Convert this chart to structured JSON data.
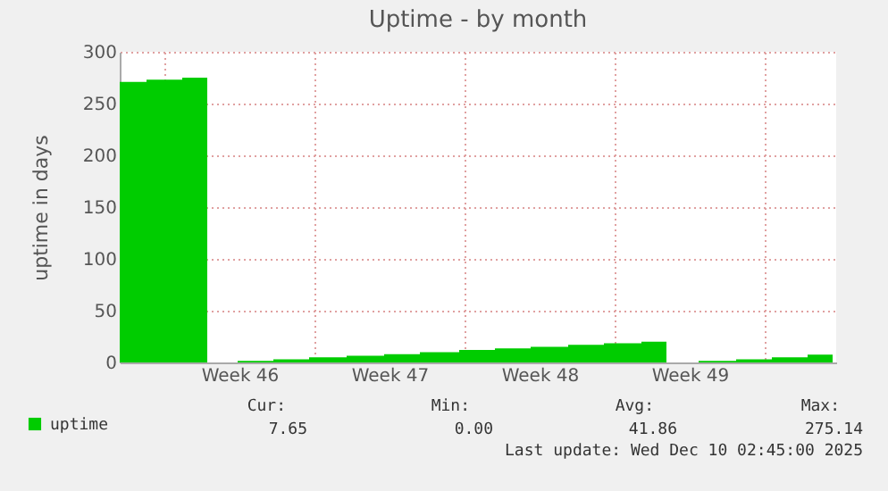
{
  "chart_data": {
    "type": "area",
    "title": "Uptime - by month",
    "ylabel": "uptime in days",
    "x": [
      "2025-11-07T22:00",
      "2025-11-09T04:00",
      "2025-11-10T20:00",
      "2025-11-12T00:00",
      "2025-11-13T10:00",
      "2025-11-15T02:00",
      "2025-11-16T18:00",
      "2025-11-18T12:00",
      "2025-11-20T06:00",
      "2025-11-21T22:00",
      "2025-11-23T18:00",
      "2025-11-25T10:00",
      "2025-11-27T02:00",
      "2025-11-28T20:00",
      "2025-11-30T12:00",
      "2025-12-02T06:00",
      "2025-12-03T10:00",
      "2025-12-04T22:00",
      "2025-12-06T16:00",
      "2025-12-08T08:00",
      "2025-12-10T00:00",
      "2025-12-11T04:00"
    ],
    "series": [
      {
        "name": "uptime",
        "color": "#00cc00",
        "values": [
          271,
          273,
          275,
          0,
          1.5,
          3,
          5,
          6.5,
          8,
          10,
          12,
          13.5,
          15,
          17,
          18.5,
          20,
          0,
          1.5,
          3,
          5,
          7.65,
          7.65
        ]
      }
    ],
    "xlim": [
      "2025-11-07T22:00",
      "2025-12-11T08:00"
    ],
    "xticks": [
      {
        "value": "2025-11-10T00:00",
        "label": null
      },
      {
        "value": "2025-11-13T12:00",
        "label": "Week 46"
      },
      {
        "value": "2025-11-17T00:00",
        "label": null
      },
      {
        "value": "2025-11-20T12:00",
        "label": "Week 47"
      },
      {
        "value": "2025-11-24T00:00",
        "label": null
      },
      {
        "value": "2025-11-27T12:00",
        "label": "Week 48"
      },
      {
        "value": "2025-12-01T00:00",
        "label": null
      },
      {
        "value": "2025-12-04T12:00",
        "label": "Week 49"
      },
      {
        "value": "2025-12-08T00:00",
        "label": null
      }
    ],
    "ylim": [
      0,
      300
    ],
    "yticks": [
      0,
      50,
      100,
      150,
      200,
      250,
      300
    ],
    "grid": true,
    "legend": "bottom left",
    "annotations": [
      "Cur:",
      "Min:",
      "Avg:",
      "Max:",
      "7.65",
      "0.00",
      "41.86",
      "275.14",
      "Last update: Wed Dec 10 02:45:00 2025"
    ]
  }
}
